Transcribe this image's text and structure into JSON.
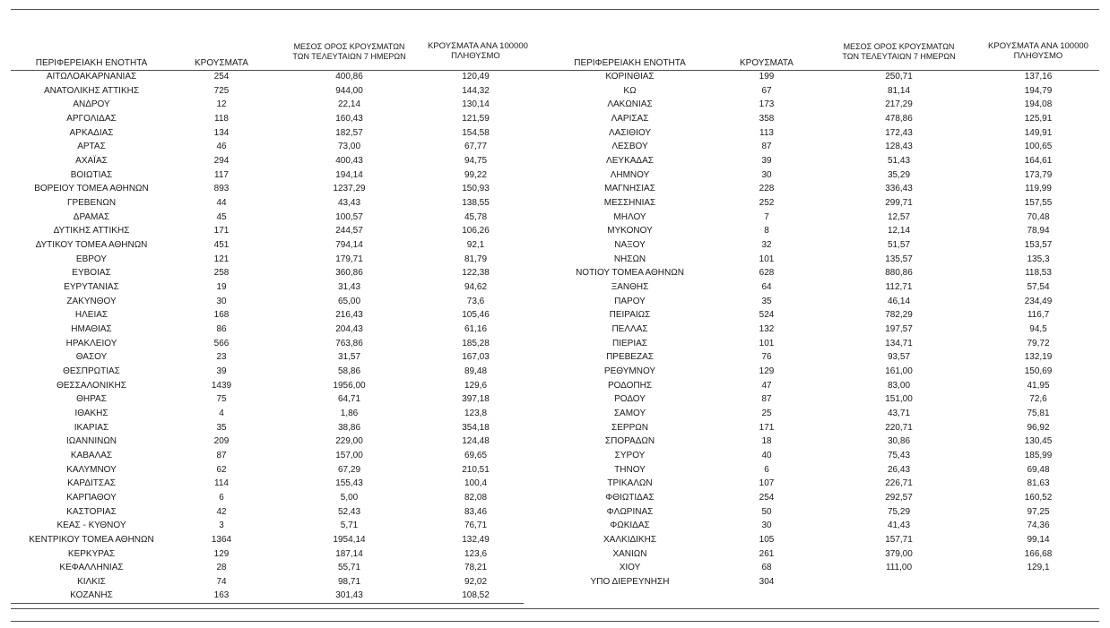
{
  "page": {
    "background": "#ffffff",
    "rule_color": "#4d4d4d",
    "text_color": "#1a1a1a"
  },
  "table": {
    "headers": {
      "region": "ΠΕΡΙΦΕΡΕΙΑΚΗ ΕΝΟΤΗΤΑ",
      "cases": "ΚΡΟΥΣΜΑΤΑ",
      "avg7_line1": "ΜΕΣΟΣ ΟΡΟΣ ΚΡΟΥΣΜΑΤΩΝ",
      "avg7_line2": "ΤΩΝ ΤΕΛΕΥΤΑΙΩΝ 7 ΗΜΕΡΩΝ",
      "per100k_line1": "ΚΡΟΥΣΜΑΤΑ ΑΝΑ 100000",
      "per100k_line2": "ΠΛΗΘΥΣΜΟ"
    },
    "left_rows": [
      [
        "ΑΙΤΩΛΟΑΚΑΡΝΑΝΙΑΣ",
        "254",
        "400,86",
        "120,49"
      ],
      [
        "ΑΝΑΤΟΛΙΚΗΣ ΑΤΤΙΚΗΣ",
        "725",
        "944,00",
        "144,32"
      ],
      [
        "ΑΝΔΡΟΥ",
        "12",
        "22,14",
        "130,14"
      ],
      [
        "ΑΡΓΟΛΙΔΑΣ",
        "118",
        "160,43",
        "121,59"
      ],
      [
        "ΑΡΚΑΔΙΑΣ",
        "134",
        "182,57",
        "154,58"
      ],
      [
        "ΑΡΤΑΣ",
        "46",
        "73,00",
        "67,77"
      ],
      [
        "ΑΧΑΪΑΣ",
        "294",
        "400,43",
        "94,75"
      ],
      [
        "ΒΟΙΩΤΙΑΣ",
        "117",
        "194,14",
        "99,22"
      ],
      [
        "ΒΟΡΕΙΟΥ ΤΟΜΕΑ ΑΘΗΝΩΝ",
        "893",
        "1237,29",
        "150,93"
      ],
      [
        "ΓΡΕΒΕΝΩΝ",
        "44",
        "43,43",
        "138,55"
      ],
      [
        "ΔΡΑΜΑΣ",
        "45",
        "100,57",
        "45,78"
      ],
      [
        "ΔΥΤΙΚΗΣ ΑΤΤΙΚΗΣ",
        "171",
        "244,57",
        "106,26"
      ],
      [
        "ΔΥΤΙΚΟΥ ΤΟΜΕΑ ΑΘΗΝΩΝ",
        "451",
        "794,14",
        "92,1"
      ],
      [
        "ΕΒΡΟΥ",
        "121",
        "179,71",
        "81,79"
      ],
      [
        "ΕΥΒΟΙΑΣ",
        "258",
        "360,86",
        "122,38"
      ],
      [
        "ΕΥΡΥΤΑΝΙΑΣ",
        "19",
        "31,43",
        "94,62"
      ],
      [
        "ΖΑΚΥΝΘΟΥ",
        "30",
        "65,00",
        "73,6"
      ],
      [
        "ΗΛΕΙΑΣ",
        "168",
        "216,43",
        "105,46"
      ],
      [
        "ΗΜΑΘΙΑΣ",
        "86",
        "204,43",
        "61,16"
      ],
      [
        "ΗΡΑΚΛΕΙΟΥ",
        "566",
        "763,86",
        "185,28"
      ],
      [
        "ΘΑΣΟΥ",
        "23",
        "31,57",
        "167,03"
      ],
      [
        "ΘΕΣΠΡΩΤΙΑΣ",
        "39",
        "58,86",
        "89,48"
      ],
      [
        "ΘΕΣΣΑΛΟΝΙΚΗΣ",
        "1439",
        "1956,00",
        "129,6"
      ],
      [
        "ΘΗΡΑΣ",
        "75",
        "64,71",
        "397,18"
      ],
      [
        "ΙΘΑΚΗΣ",
        "4",
        "1,86",
        "123,8"
      ],
      [
        "ΙΚΑΡΙΑΣ",
        "35",
        "38,86",
        "354,18"
      ],
      [
        "ΙΩΑΝΝΙΝΩΝ",
        "209",
        "229,00",
        "124,48"
      ],
      [
        "ΚΑΒΑΛΑΣ",
        "87",
        "157,00",
        "69,65"
      ],
      [
        "ΚΑΛΥΜΝΟΥ",
        "62",
        "67,29",
        "210,51"
      ],
      [
        "ΚΑΡΔΙΤΣΑΣ",
        "114",
        "155,43",
        "100,4"
      ],
      [
        "ΚΑΡΠΑΘΟΥ",
        "6",
        "5,00",
        "82,08"
      ],
      [
        "ΚΑΣΤΟΡΙΑΣ",
        "42",
        "52,43",
        "83,46"
      ],
      [
        "ΚΕΑΣ - ΚΥΘΝΟΥ",
        "3",
        "5,71",
        "76,71"
      ],
      [
        "ΚΕΝΤΡΙΚΟΥ ΤΟΜΕΑ ΑΘΗΝΩΝ",
        "1364",
        "1954,14",
        "132,49"
      ],
      [
        "ΚΕΡΚΥΡΑΣ",
        "129",
        "187,14",
        "123,6"
      ],
      [
        "ΚΕΦΑΛΛΗΝΙΑΣ",
        "28",
        "55,71",
        "78,21"
      ],
      [
        "ΚΙΛΚΙΣ",
        "74",
        "98,71",
        "92,02"
      ],
      [
        "ΚΟΖΑΝΗΣ",
        "163",
        "301,43",
        "108,52"
      ]
    ],
    "right_rows": [
      [
        "ΚΟΡΙΝΘΙΑΣ",
        "199",
        "250,71",
        "137,16"
      ],
      [
        "ΚΩ",
        "67",
        "81,14",
        "194,79"
      ],
      [
        "ΛΑΚΩΝΙΑΣ",
        "173",
        "217,29",
        "194,08"
      ],
      [
        "ΛΑΡΙΣΑΣ",
        "358",
        "478,86",
        "125,91"
      ],
      [
        "ΛΑΣΙΘΙΟΥ",
        "113",
        "172,43",
        "149,91"
      ],
      [
        "ΛΕΣΒΟΥ",
        "87",
        "128,43",
        "100,65"
      ],
      [
        "ΛΕΥΚΑΔΑΣ",
        "39",
        "51,43",
        "164,61"
      ],
      [
        "ΛΗΜΝΟΥ",
        "30",
        "35,29",
        "173,79"
      ],
      [
        "ΜΑΓΝΗΣΙΑΣ",
        "228",
        "336,43",
        "119,99"
      ],
      [
        "ΜΕΣΣΗΝΙΑΣ",
        "252",
        "299,71",
        "157,55"
      ],
      [
        "ΜΗΛΟΥ",
        "7",
        "12,57",
        "70,48"
      ],
      [
        "ΜΥΚΟΝΟΥ",
        "8",
        "12,14",
        "78,94"
      ],
      [
        "ΝΑΞΟΥ",
        "32",
        "51,57",
        "153,57"
      ],
      [
        "ΝΗΣΩΝ",
        "101",
        "135,57",
        "135,3"
      ],
      [
        "ΝΟΤΙΟΥ ΤΟΜΕΑ ΑΘΗΝΩΝ",
        "628",
        "880,86",
        "118,53"
      ],
      [
        "ΞΑΝΘΗΣ",
        "64",
        "112,71",
        "57,54"
      ],
      [
        "ΠΑΡΟΥ",
        "35",
        "46,14",
        "234,49"
      ],
      [
        "ΠΕΙΡΑΙΩΣ",
        "524",
        "782,29",
        "116,7"
      ],
      [
        "ΠΕΛΛΑΣ",
        "132",
        "197,57",
        "94,5"
      ],
      [
        "ΠΙΕΡΙΑΣ",
        "101",
        "134,71",
        "79,72"
      ],
      [
        "ΠΡΕΒΕΖΑΣ",
        "76",
        "93,57",
        "132,19"
      ],
      [
        "ΡΕΘΥΜΝΟΥ",
        "129",
        "161,00",
        "150,69"
      ],
      [
        "ΡΟΔΟΠΗΣ",
        "47",
        "83,00",
        "41,95"
      ],
      [
        "ΡΟΔΟΥ",
        "87",
        "151,00",
        "72,6"
      ],
      [
        "ΣΑΜΟΥ",
        "25",
        "43,71",
        "75,81"
      ],
      [
        "ΣΕΡΡΩΝ",
        "171",
        "220,71",
        "96,92"
      ],
      [
        "ΣΠΟΡΑΔΩΝ",
        "18",
        "30,86",
        "130,45"
      ],
      [
        "ΣΥΡΟΥ",
        "40",
        "75,43",
        "185,99"
      ],
      [
        "ΤΗΝΟΥ",
        "6",
        "26,43",
        "69,48"
      ],
      [
        "ΤΡΙΚΑΛΩΝ",
        "107",
        "226,71",
        "81,63"
      ],
      [
        "ΦΘΙΩΤΙΔΑΣ",
        "254",
        "292,57",
        "160,52"
      ],
      [
        "ΦΛΩΡΙΝΑΣ",
        "50",
        "75,29",
        "97,25"
      ],
      [
        "ΦΩΚΙΔΑΣ",
        "30",
        "41,43",
        "74,36"
      ],
      [
        "ΧΑΛΚΙΔΙΚΗΣ",
        "105",
        "157,71",
        "99,14"
      ],
      [
        "ΧΑΝΙΩΝ",
        "261",
        "379,00",
        "166,68"
      ],
      [
        "ΧΙΟΥ",
        "68",
        "111,00",
        "129,1"
      ],
      [
        "ΥΠΟ ΔΙΕΡΕΥΝΗΣΗ",
        "304",
        "",
        ""
      ]
    ]
  }
}
